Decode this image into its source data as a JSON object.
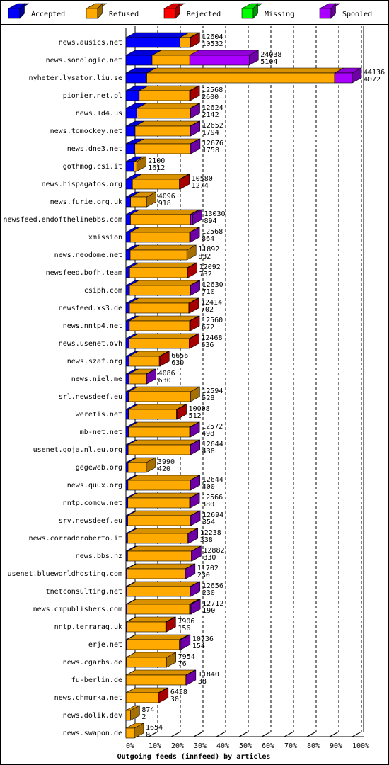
{
  "chart_data": {
    "type": "bar",
    "orientation": "horizontal",
    "stacked": true,
    "x_label": "Outgoing feeds (innfeed) by articles",
    "categories": [
      "news.ausics.net",
      "news.sonologic.net",
      "nyheter.lysator.liu.se",
      "pionier.net.pl",
      "news.1d4.us",
      "news.tomockey.net",
      "news.dne3.net",
      "gothmog.csi.it",
      "news.hispagatos.org",
      "news.furie.org.uk",
      "newsfeed.endofthelinebbs.com",
      "xmission",
      "news.neodome.net",
      "newsfeed.bofh.team",
      "csiph.com",
      "newsfeed.xs3.de",
      "news.nntp4.net",
      "news.usenet.ovh",
      "news.szaf.org",
      "news.niel.me",
      "srl.newsdeef.eu",
      "weretis.net",
      "mb-net.net",
      "usenet.goja.nl.eu.org",
      "gegeweb.org",
      "news.quux.org",
      "nntp.comgw.net",
      "srv.newsdeef.eu",
      "news.corradoroberto.it",
      "news.bbs.nz",
      "usenet.blueworldhosting.com",
      "tnetconsulting.net",
      "news.cmpublishers.com",
      "nntp.terraraq.uk",
      "erje.net",
      "news.cgarbs.de",
      "fu-berlin.de",
      "news.chmurka.net",
      "news.dolik.dev",
      "news.swapon.de"
    ],
    "totals": [
      12604,
      24038,
      44136,
      12568,
      12624,
      12652,
      12676,
      2100,
      10580,
      4096,
      13030,
      12568,
      11892,
      12092,
      12630,
      12414,
      12560,
      12468,
      6656,
      4086,
      12594,
      10008,
      12572,
      12644,
      3990,
      12644,
      12566,
      12694,
      12238,
      12882,
      11702,
      12656,
      12712,
      7906,
      10736,
      7954,
      11840,
      6458,
      874,
      1654
    ],
    "series": [
      {
        "name": "Accepted",
        "color": "#0000ff",
        "values": [
          10532,
          5104,
          4072,
          2600,
          2142,
          1794,
          1758,
          1612,
          1274,
          918,
          894,
          864,
          832,
          732,
          710,
          702,
          672,
          636,
          630,
          630,
          528,
          512,
          498,
          438,
          420,
          400,
          380,
          354,
          338,
          330,
          230,
          230,
          190,
          156,
          154,
          76,
          38,
          30,
          2,
          0
        ]
      },
      {
        "name": "Refused",
        "color": "#ffaa00",
        "values": [
          1922,
          7334,
          36614,
          9818,
          10332,
          10708,
          10768,
          488,
          9156,
          3178,
          11586,
          11554,
          11060,
          11210,
          11770,
          11562,
          11738,
          11682,
          5876,
          3306,
          12066,
          9346,
          11924,
          12056,
          3570,
          12094,
          12036,
          12190,
          11750,
          12402,
          11322,
          12276,
          12222,
          7600,
          10282,
          7878,
          11652,
          6278,
          872,
          1654
        ]
      },
      {
        "name": "Rejected",
        "color": "#ff0000",
        "values": [
          150,
          0,
          0,
          150,
          0,
          0,
          0,
          0,
          150,
          0,
          150,
          0,
          0,
          150,
          0,
          150,
          150,
          150,
          150,
          0,
          0,
          150,
          0,
          0,
          0,
          0,
          0,
          0,
          0,
          0,
          0,
          0,
          150,
          150,
          150,
          0,
          0,
          150,
          0,
          0
        ]
      },
      {
        "name": "Missing",
        "color": "#00ff00",
        "values": [
          0,
          0,
          0,
          0,
          0,
          0,
          0,
          0,
          0,
          0,
          0,
          0,
          0,
          0,
          0,
          0,
          0,
          0,
          0,
          0,
          0,
          0,
          0,
          0,
          0,
          0,
          0,
          0,
          0,
          0,
          0,
          0,
          0,
          0,
          0,
          0,
          0,
          0,
          0,
          0
        ]
      },
      {
        "name": "Spooled",
        "color": "#aa00ff",
        "values": [
          0,
          11600,
          3450,
          0,
          150,
          150,
          150,
          0,
          0,
          0,
          400,
          150,
          0,
          0,
          150,
          0,
          0,
          0,
          0,
          150,
          0,
          0,
          150,
          150,
          0,
          150,
          150,
          150,
          150,
          150,
          150,
          150,
          150,
          0,
          150,
          0,
          150,
          0,
          0,
          0
        ]
      }
    ],
    "xlim": [
      0,
      44136
    ],
    "xticks": [
      {
        "value": 0,
        "label": "0%"
      },
      {
        "value": 4413.6,
        "label": "10%"
      },
      {
        "value": 8827.2,
        "label": "20%"
      },
      {
        "value": 13240.8,
        "label": "30%"
      },
      {
        "value": 17654.4,
        "label": "40%"
      },
      {
        "value": 22068,
        "label": "50%"
      },
      {
        "value": 26481.6,
        "label": "60%"
      },
      {
        "value": 30895.2,
        "label": "70%"
      },
      {
        "value": 35308.8,
        "label": "80%"
      },
      {
        "value": 39722.4,
        "label": "90%"
      },
      {
        "value": 44136,
        "label": "100%"
      }
    ],
    "grid": true
  }
}
